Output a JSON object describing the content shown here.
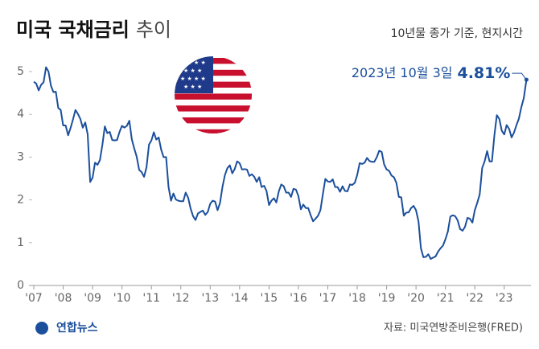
{
  "chart_data": {
    "type": "line",
    "title": "미국 국채금리",
    "title_suffix": "추이",
    "subtitle": "10년물 종가 기준, 현지시간",
    "source": "자료: 미국연방준비은행(FRED)",
    "logo": "연합뉴스",
    "annotation": {
      "date": "2023년 10월 3일",
      "value": 4.81,
      "label": "4.81%"
    },
    "xlim": [
      2007,
      2023.8
    ],
    "ylim": [
      0,
      5.3
    ],
    "yticks": [
      0,
      1,
      2,
      3,
      4,
      5
    ],
    "xticks": [
      {
        "value": 2007,
        "label": "'07"
      },
      {
        "value": 2008,
        "label": "'08"
      },
      {
        "value": 2009,
        "label": "'09"
      },
      {
        "value": 2010,
        "label": "'10"
      },
      {
        "value": 2011,
        "label": "'11"
      },
      {
        "value": 2012,
        "label": "'12"
      },
      {
        "value": 2013,
        "label": "'13"
      },
      {
        "value": 2014,
        "label": "'14"
      },
      {
        "value": 2015,
        "label": "'15"
      },
      {
        "value": 2016,
        "label": "'16"
      },
      {
        "value": 2017,
        "label": "'17"
      },
      {
        "value": 2018,
        "label": "'18"
      },
      {
        "value": 2019,
        "label": "'19"
      },
      {
        "value": 2020,
        "label": "'20"
      },
      {
        "value": 2021,
        "label": "'21"
      },
      {
        "value": 2022,
        "label": "'22"
      },
      {
        "value": 2023,
        "label": "'23"
      }
    ],
    "x": [
      2007,
      2007.083,
      2007.167,
      2007.25,
      2007.333,
      2007.417,
      2007.5,
      2007.583,
      2007.667,
      2007.75,
      2007.833,
      2007.917,
      2008,
      2008.083,
      2008.167,
      2008.25,
      2008.333,
      2008.417,
      2008.5,
      2008.583,
      2008.667,
      2008.75,
      2008.833,
      2008.917,
      2009,
      2009.083,
      2009.167,
      2009.25,
      2009.333,
      2009.417,
      2009.5,
      2009.583,
      2009.667,
      2009.75,
      2009.833,
      2009.917,
      2010,
      2010.083,
      2010.167,
      2010.25,
      2010.333,
      2010.417,
      2010.5,
      2010.583,
      2010.667,
      2010.75,
      2010.833,
      2010.917,
      2011,
      2011.083,
      2011.167,
      2011.25,
      2011.333,
      2011.417,
      2011.5,
      2011.583,
      2011.667,
      2011.75,
      2011.833,
      2011.917,
      2012,
      2012.083,
      2012.167,
      2012.25,
      2012.333,
      2012.417,
      2012.5,
      2012.583,
      2012.667,
      2012.75,
      2012.833,
      2012.917,
      2013,
      2013.083,
      2013.167,
      2013.25,
      2013.333,
      2013.417,
      2013.5,
      2013.583,
      2013.667,
      2013.75,
      2013.833,
      2013.917,
      2014,
      2014.083,
      2014.167,
      2014.25,
      2014.333,
      2014.417,
      2014.5,
      2014.583,
      2014.667,
      2014.75,
      2014.833,
      2014.917,
      2015,
      2015.083,
      2015.167,
      2015.25,
      2015.333,
      2015.417,
      2015.5,
      2015.583,
      2015.667,
      2015.75,
      2015.833,
      2015.917,
      2016,
      2016.083,
      2016.167,
      2016.25,
      2016.333,
      2016.417,
      2016.5,
      2016.583,
      2016.667,
      2016.75,
      2016.833,
      2016.917,
      2017,
      2017.083,
      2017.167,
      2017.25,
      2017.333,
      2017.417,
      2017.5,
      2017.583,
      2017.667,
      2017.75,
      2017.833,
      2017.917,
      2018,
      2018.083,
      2018.167,
      2018.25,
      2018.333,
      2018.417,
      2018.5,
      2018.583,
      2018.667,
      2018.75,
      2018.833,
      2018.917,
      2019,
      2019.083,
      2019.167,
      2019.25,
      2019.333,
      2019.417,
      2019.5,
      2019.583,
      2019.667,
      2019.75,
      2019.833,
      2019.917,
      2020,
      2020.083,
      2020.167,
      2020.25,
      2020.333,
      2020.417,
      2020.5,
      2020.583,
      2020.667,
      2020.75,
      2020.833,
      2020.917,
      2021,
      2021.083,
      2021.167,
      2021.25,
      2021.333,
      2021.417,
      2021.5,
      2021.583,
      2021.667,
      2021.75,
      2021.833,
      2021.917,
      2022,
      2022.083,
      2022.167,
      2022.25,
      2022.333,
      2022.417,
      2022.5,
      2022.583,
      2022.667,
      2022.75,
      2022.833,
      2022.917,
      2023,
      2023.083,
      2023.167,
      2023.25,
      2023.333,
      2023.417,
      2023.5,
      2023.583,
      2023.667,
      2023.756
    ],
    "series": [
      {
        "name": "미국 국채금리",
        "color": "#1b4f9c",
        "values": [
          4.76,
          4.72,
          4.56,
          4.69,
          4.75,
          5.1,
          5.0,
          4.67,
          4.52,
          4.53,
          4.15,
          4.1,
          3.74,
          3.74,
          3.51,
          3.68,
          3.88,
          4.1,
          4.01,
          3.89,
          3.69,
          3.81,
          3.53,
          2.42,
          2.52,
          2.87,
          2.82,
          2.93,
          3.29,
          3.72,
          3.56,
          3.59,
          3.4,
          3.39,
          3.4,
          3.59,
          3.73,
          3.69,
          3.73,
          3.85,
          3.42,
          3.2,
          3.01,
          2.7,
          2.65,
          2.54,
          2.76,
          3.29,
          3.39,
          3.58,
          3.41,
          3.46,
          3.17,
          3.0,
          3.0,
          2.3,
          1.98,
          2.15,
          2.01,
          1.98,
          1.97,
          1.97,
          2.17,
          2.05,
          1.8,
          1.62,
          1.53,
          1.68,
          1.72,
          1.75,
          1.65,
          1.72,
          1.91,
          1.98,
          1.96,
          1.76,
          1.93,
          2.3,
          2.58,
          2.74,
          2.81,
          2.62,
          2.72,
          2.9,
          2.86,
          2.71,
          2.72,
          2.71,
          2.56,
          2.6,
          2.54,
          2.42,
          2.53,
          2.3,
          2.33,
          2.21,
          1.88,
          1.98,
          2.04,
          1.94,
          2.2,
          2.36,
          2.32,
          2.17,
          2.17,
          2.07,
          2.26,
          2.24,
          2.09,
          1.78,
          1.89,
          1.81,
          1.81,
          1.64,
          1.5,
          1.56,
          1.63,
          1.76,
          2.14,
          2.49,
          2.43,
          2.42,
          2.48,
          2.3,
          2.3,
          2.19,
          2.32,
          2.21,
          2.2,
          2.36,
          2.35,
          2.4,
          2.58,
          2.86,
          2.84,
          2.87,
          2.98,
          2.91,
          2.89,
          2.89,
          3.0,
          3.15,
          3.12,
          2.83,
          2.71,
          2.68,
          2.57,
          2.53,
          2.4,
          2.07,
          2.06,
          1.63,
          1.7,
          1.71,
          1.81,
          1.86,
          1.76,
          1.5,
          0.87,
          0.66,
          0.67,
          0.73,
          0.62,
          0.65,
          0.68,
          0.79,
          0.87,
          0.93,
          1.08,
          1.26,
          1.61,
          1.64,
          1.62,
          1.52,
          1.32,
          1.28,
          1.37,
          1.58,
          1.56,
          1.47,
          1.76,
          1.93,
          2.13,
          2.75,
          2.9,
          3.14,
          2.9,
          2.9,
          3.52,
          3.98,
          3.89,
          3.62,
          3.53,
          3.75,
          3.66,
          3.46,
          3.57,
          3.75,
          3.9,
          4.17,
          4.38,
          4.81
        ]
      }
    ]
  }
}
